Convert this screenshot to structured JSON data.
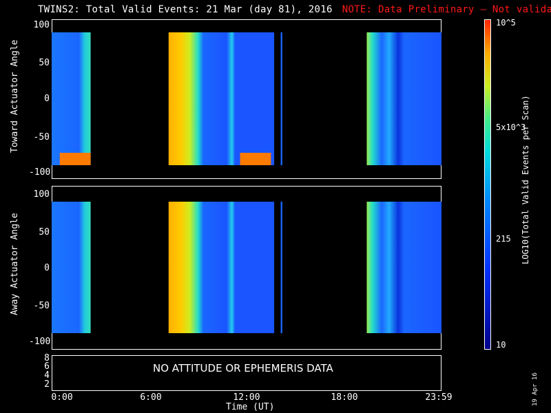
{
  "title": "TWINS2: Total Valid Events: 21 Mar (day  81), 2016",
  "note": "NOTE: Data Preliminary — Not validated",
  "message": "NO ATTITUDE OR EPHEMERIS DATA",
  "date": "19 Apr 16",
  "colorbar": {
    "title": "LOG10(Total Valid Events per Scan)",
    "labels": [
      "10^5",
      "5x10^3",
      "215",
      "10"
    ]
  },
  "chart_data": [
    {
      "type": "heatmap",
      "ylabel": "Toward Actuator Angle",
      "yticks": [
        "100",
        "50",
        "0",
        "-50",
        "-100"
      ],
      "ylim": [
        -110,
        110
      ],
      "xticks": [
        "0:00",
        "6:00",
        "12:00",
        "18:00",
        "23:59"
      ],
      "xlabel": "Time (UT)",
      "data_intervals_hours": [
        [
          0.0,
          2.4
        ],
        [
          7.2,
          13.7
        ],
        [
          14.1,
          14.2
        ],
        [
          19.4,
          24.0
        ]
      ]
    },
    {
      "type": "heatmap",
      "ylabel": "Away Actuator Angle",
      "yticks": [
        "100",
        "50",
        "0",
        "-50",
        "-100"
      ],
      "ylim": [
        -110,
        110
      ],
      "xticks": [
        "0:00",
        "6:00",
        "12:00",
        "18:00",
        "23:59"
      ],
      "xlabel": "Time (UT)",
      "data_intervals_hours": [
        [
          0.0,
          2.4
        ],
        [
          7.2,
          13.7
        ],
        [
          14.1,
          14.2
        ],
        [
          19.4,
          24.0
        ]
      ]
    },
    {
      "type": "line",
      "yticks": [
        "8",
        "6",
        "4",
        "2"
      ],
      "xticks": [
        "0:00",
        "6:00",
        "12:00",
        "18:00",
        "23:59"
      ],
      "xlabel": "Time (UT)"
    }
  ]
}
